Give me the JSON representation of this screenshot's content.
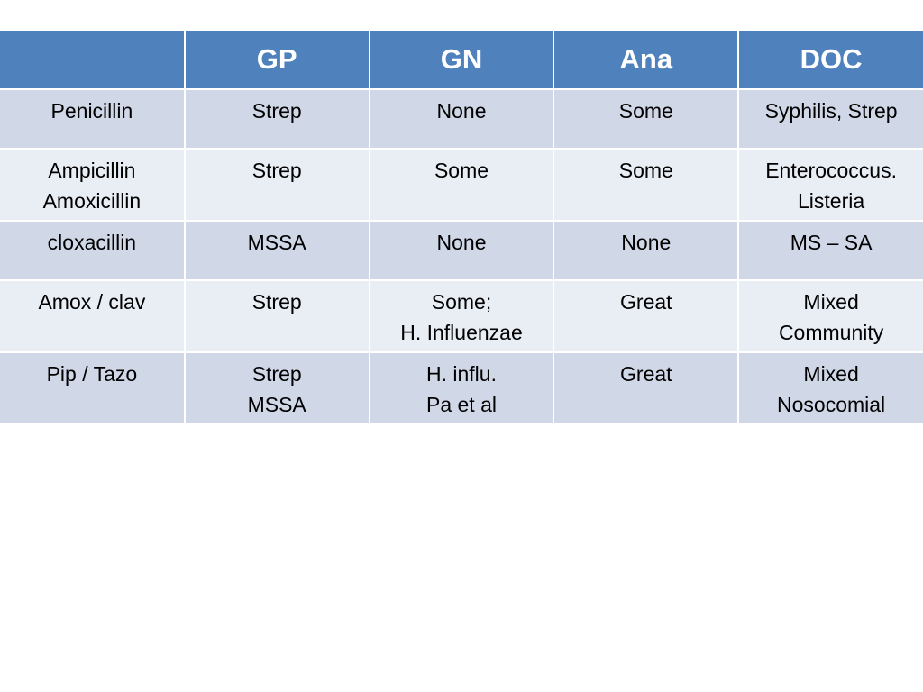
{
  "table": {
    "headers": [
      "",
      "GP",
      "GN",
      "Ana",
      "DOC"
    ],
    "rows": [
      [
        "Penicillin",
        "Strep",
        "None",
        "Some",
        "Syphilis, Strep"
      ],
      [
        "Ampicillin\nAmoxicillin",
        "Strep",
        "Some",
        "Some",
        "Enterococcus.\nListeria"
      ],
      [
        "cloxacillin",
        "MSSA",
        "None",
        "None",
        "MS – SA"
      ],
      [
        "Amox / clav",
        "Strep",
        "Some;\nH. Influenzae",
        "Great",
        "Mixed\nCommunity"
      ],
      [
        "Pip / Tazo",
        "Strep\nMSSA",
        "H. influ.\nPa et al",
        "Great",
        "Mixed\nNosocomial"
      ]
    ]
  },
  "colors": {
    "header_bg": "#4f81bd",
    "row_odd_bg": "#d0d8e8",
    "row_even_bg": "#e9edf4"
  }
}
